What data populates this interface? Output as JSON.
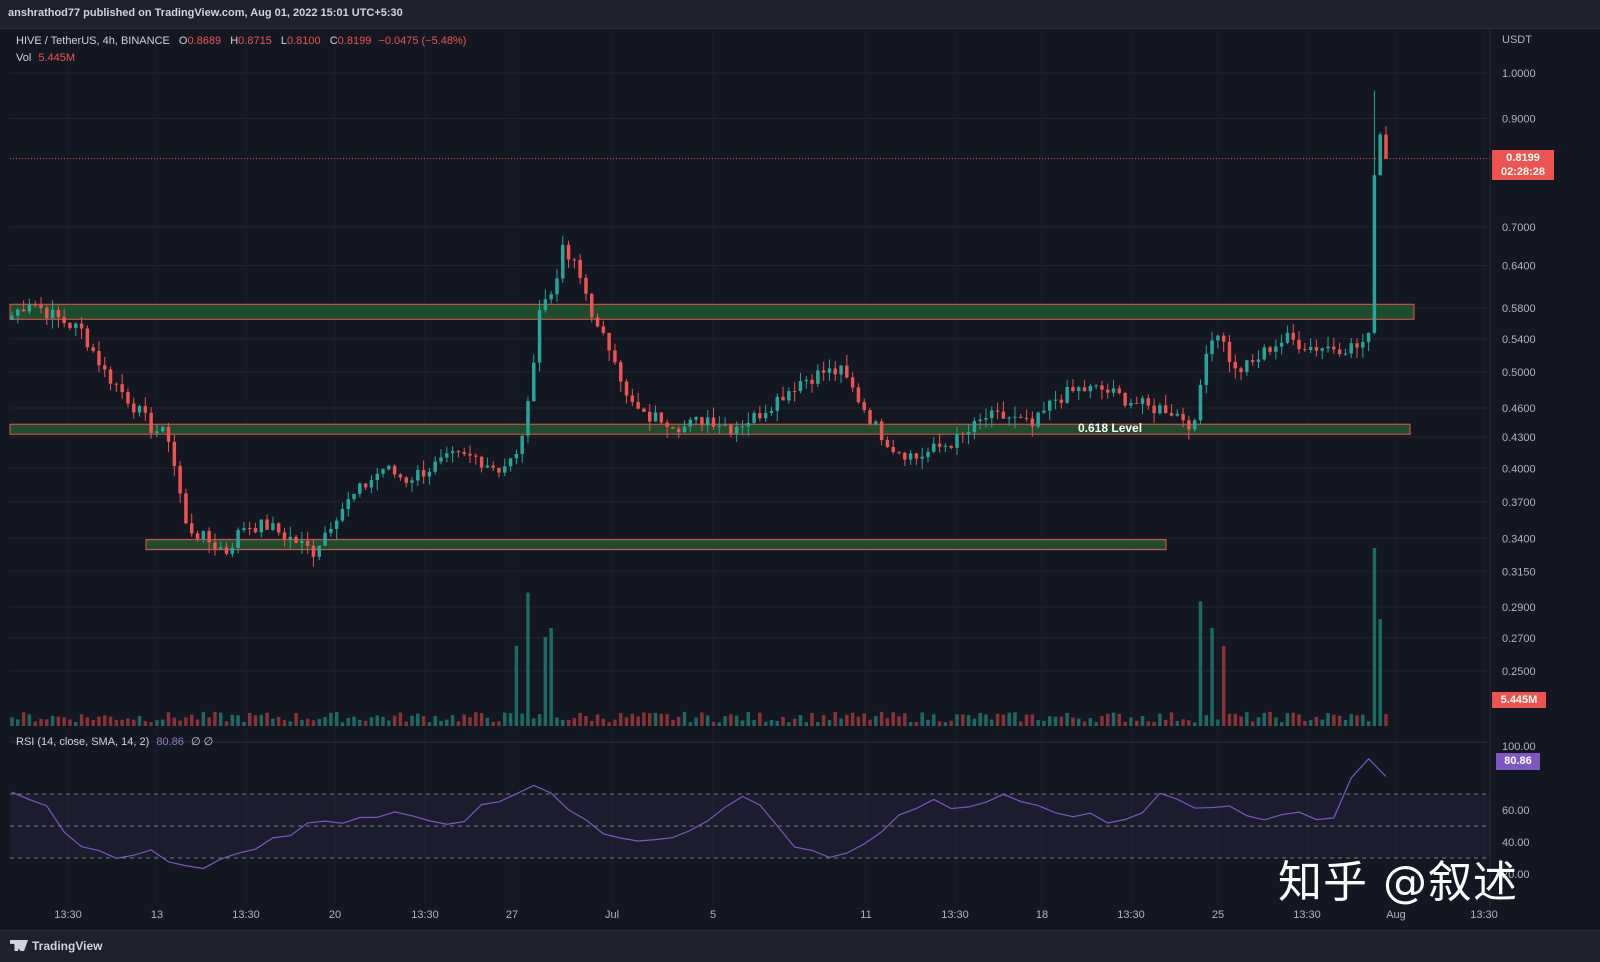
{
  "header": {
    "publisher": "anshrathod77 published on TradingView.com, Aug 01, 2022 15:01 UTC+5:30"
  },
  "legend": {
    "symbol": "HIVE / TetherUS, 4h, BINANCE",
    "open_label": "O",
    "open": "0.8689",
    "high_label": "H",
    "high": "0.8715",
    "low_label": "L",
    "low": "0.8100",
    "close_label": "C",
    "close": "0.8199",
    "change": "−0.0475 (−5.48%)",
    "vol_label": "Vol",
    "vol": "5.445M"
  },
  "rsi_legend": {
    "label": "RSI (14, close, SMA, 14, 2)",
    "value": "80.86",
    "extra": "∅ ∅"
  },
  "tags": {
    "price": "0.8199",
    "countdown": "02:28:28",
    "volume": "5.445M",
    "rsi": "80.86"
  },
  "annotation": "0.618 Level",
  "watermark": "知乎 @叙述",
  "footer": {
    "brand": "TradingView"
  },
  "colors": {
    "up": "#26a69a",
    "down": "#ef5350",
    "zone_fill": "#1e4d2b",
    "zone_border": "#ef5350",
    "rsi": "#7e57c2",
    "background": "#131722"
  },
  "chart_data": [
    {
      "type": "candlestick",
      "title": "HIVE / TetherUS, 4h, BINANCE",
      "y_axis_unit": "USDT",
      "y_scale": "log",
      "y_ticks": [
        "1.0000",
        "0.9000",
        "0.8199",
        "0.7000",
        "0.6400",
        "0.5800",
        "0.5400",
        "0.5000",
        "0.4600",
        "0.4300",
        "0.4000",
        "0.3700",
        "0.3400",
        "0.3150",
        "0.2900",
        "0.2700",
        "0.2500"
      ],
      "x_ticks": [
        "13:30",
        "13",
        "13:30",
        "20",
        "13:30",
        "27",
        "Jul",
        "5",
        "11",
        "13:30",
        "18",
        "13:30",
        "25",
        "13:30",
        "Aug",
        "13:30"
      ],
      "last_close": 0.8199,
      "price_path": [
        [
          0,
          0.57
        ],
        [
          3,
          0.59
        ],
        [
          7,
          0.57
        ],
        [
          12,
          0.55
        ],
        [
          16,
          0.5
        ],
        [
          20,
          0.47
        ],
        [
          24,
          0.44
        ],
        [
          27,
          0.43
        ],
        [
          30,
          0.35
        ],
        [
          33,
          0.34
        ],
        [
          37,
          0.33
        ],
        [
          40,
          0.35
        ],
        [
          44,
          0.35
        ],
        [
          48,
          0.34
        ],
        [
          52,
          0.33
        ],
        [
          56,
          0.36
        ],
        [
          60,
          0.38
        ],
        [
          64,
          0.4
        ],
        [
          68,
          0.39
        ],
        [
          72,
          0.4
        ],
        [
          76,
          0.41
        ],
        [
          80,
          0.41
        ],
        [
          84,
          0.4
        ],
        [
          87,
          0.41
        ],
        [
          89,
          0.46
        ],
        [
          91,
          0.58
        ],
        [
          93,
          0.6
        ],
        [
          95,
          0.66
        ],
        [
          97,
          0.64
        ],
        [
          99,
          0.6
        ],
        [
          101,
          0.55
        ],
        [
          104,
          0.52
        ],
        [
          106,
          0.47
        ],
        [
          109,
          0.45
        ],
        [
          112,
          0.45
        ],
        [
          116,
          0.44
        ],
        [
          120,
          0.45
        ],
        [
          124,
          0.44
        ],
        [
          128,
          0.45
        ],
        [
          132,
          0.47
        ],
        [
          136,
          0.49
        ],
        [
          140,
          0.5
        ],
        [
          143,
          0.5
        ],
        [
          146,
          0.47
        ],
        [
          149,
          0.44
        ],
        [
          152,
          0.42
        ],
        [
          156,
          0.41
        ],
        [
          160,
          0.42
        ],
        [
          164,
          0.43
        ],
        [
          168,
          0.45
        ],
        [
          172,
          0.45
        ],
        [
          176,
          0.44
        ],
        [
          180,
          0.47
        ],
        [
          184,
          0.48
        ],
        [
          188,
          0.48
        ],
        [
          192,
          0.47
        ],
        [
          196,
          0.46
        ],
        [
          199,
          0.46
        ],
        [
          202,
          0.45
        ],
        [
          204,
          0.44
        ],
        [
          206,
          0.53
        ],
        [
          208,
          0.55
        ],
        [
          211,
          0.5
        ],
        [
          214,
          0.51
        ],
        [
          217,
          0.53
        ],
        [
          220,
          0.54
        ],
        [
          224,
          0.53
        ],
        [
          228,
          0.53
        ],
        [
          232,
          0.53
        ],
        [
          234,
          0.54
        ],
        [
          235,
          0.8
        ],
        [
          236,
          0.87
        ],
        [
          237,
          0.82
        ]
      ],
      "zones": [
        {
          "label": "",
          "low": 0.565,
          "high": 0.585
        },
        {
          "label": "0.618 Level",
          "low": 0.435,
          "high": 0.443
        },
        {
          "label": "",
          "low": 0.332,
          "high": 0.339
        }
      ]
    },
    {
      "type": "bar",
      "title": "Vol",
      "last_value": "5.445M",
      "peaks": [
        [
          87,
          0.45
        ],
        [
          89,
          0.75
        ],
        [
          92,
          0.5
        ],
        [
          93,
          0.55
        ],
        [
          205,
          0.7
        ],
        [
          207,
          0.55
        ],
        [
          209,
          0.45
        ],
        [
          235,
          1.0
        ],
        [
          236,
          0.6
        ]
      ]
    },
    {
      "type": "line",
      "title": "RSI (14, close, SMA, 14, 2)",
      "y_ticks": [
        "100.00",
        "80.86",
        "60.00",
        "40.00",
        "20.00"
      ],
      "bands": [
        70,
        50,
        30
      ],
      "series": [
        {
          "values": [
            70,
            68,
            63,
            45,
            38,
            33,
            31,
            30,
            34,
            28,
            25,
            24,
            28,
            33,
            37,
            41,
            45,
            52,
            55,
            53,
            54,
            55,
            58,
            56,
            55,
            52,
            54,
            62,
            66,
            72,
            76,
            72,
            60,
            52,
            46,
            44,
            42,
            43,
            44,
            48,
            55,
            63,
            67,
            63,
            50,
            38,
            33,
            30,
            32,
            38,
            45,
            55,
            62,
            66,
            62,
            60,
            65,
            68,
            66,
            62,
            58,
            55,
            57,
            52,
            54,
            60,
            72,
            68,
            63,
            60,
            64,
            58,
            55,
            56,
            58,
            54,
            55,
            80,
            92,
            81
          ]
        }
      ]
    }
  ]
}
